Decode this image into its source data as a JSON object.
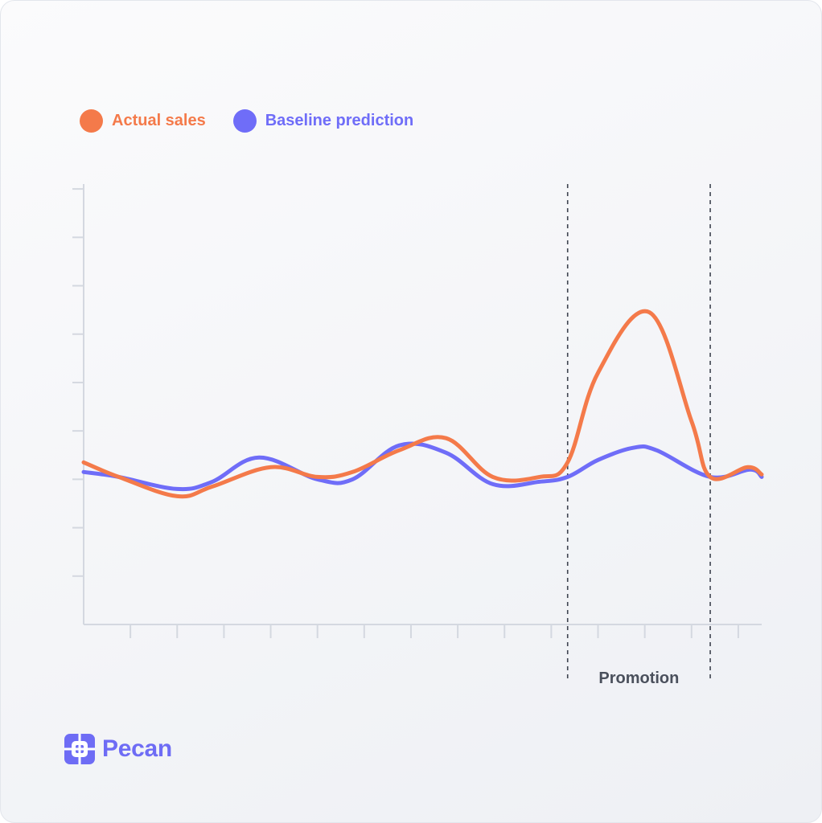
{
  "legend": {
    "actual": "Actual sales",
    "baseline": "Baseline prediction"
  },
  "colors": {
    "actual": "#f47a4a",
    "baseline": "#6f6df8",
    "axis": "#d4d8e0",
    "annotation_text": "#4a505c",
    "brand": "#6e6cf5"
  },
  "brand": {
    "name": "Pecan",
    "logo_icon": "pecan-logo-icon"
  },
  "chart_data": {
    "type": "line",
    "title": "",
    "xlabel": "",
    "ylabel": "",
    "xlim": [
      0,
      29
    ],
    "ylim": [
      0,
      9.5
    ],
    "grid": false,
    "legend_position": "top-left",
    "x_ticks": [
      2,
      4,
      6,
      8,
      10,
      12,
      14,
      16,
      18,
      20,
      22,
      24,
      26,
      28
    ],
    "y_ticks": [
      1,
      2,
      3,
      4,
      5,
      6,
      7,
      8,
      9
    ],
    "series": [
      {
        "name": "Actual sales",
        "x": [
          0,
          1.5,
          4,
          5.5,
          8,
          10,
          11.5,
          13.5,
          15.5,
          17.5,
          19.5,
          20.7,
          22,
          24.2,
          26,
          26.8,
          28.4,
          29
        ],
        "y": [
          3.35,
          3.05,
          2.65,
          2.85,
          3.25,
          3.05,
          3.15,
          3.6,
          3.85,
          3.05,
          3.05,
          3.35,
          5.2,
          6.45,
          4.2,
          3.05,
          3.25,
          3.1
        ]
      },
      {
        "name": "Baseline prediction",
        "x": [
          0,
          1.5,
          4,
          5.5,
          7.5,
          10,
          11.5,
          13.5,
          15.5,
          17.5,
          19.5,
          20.7,
          22,
          23.5,
          24.5,
          26.8,
          28.5,
          29
        ],
        "y": [
          3.15,
          3.05,
          2.8,
          2.95,
          3.45,
          3.0,
          3.0,
          3.7,
          3.55,
          2.9,
          2.95,
          3.05,
          3.4,
          3.65,
          3.6,
          3.05,
          3.2,
          3.05
        ]
      }
    ],
    "annotations": [
      {
        "label": "Promotion",
        "x_start": 20.7,
        "x_end": 26.8
      }
    ]
  }
}
